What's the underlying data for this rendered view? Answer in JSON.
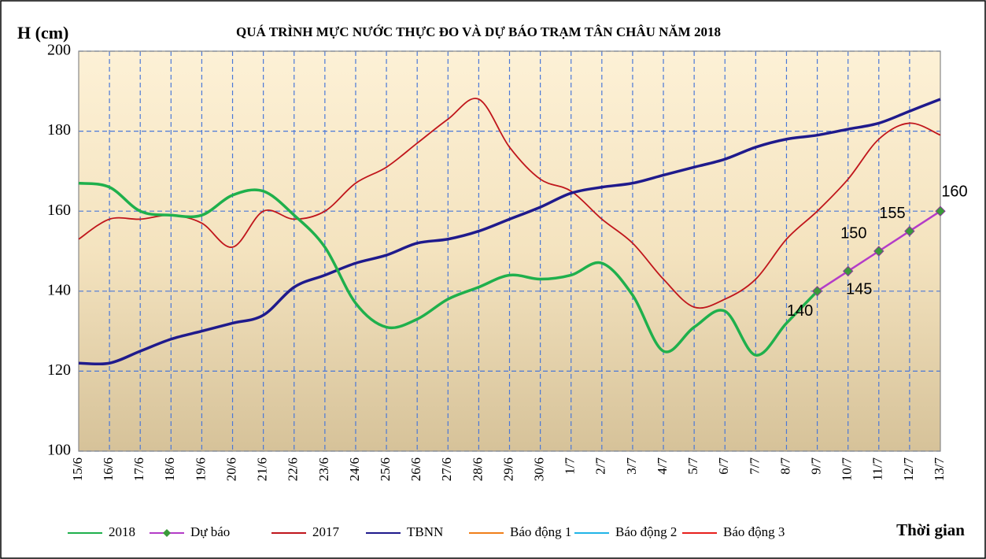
{
  "chart_data": {
    "type": "line",
    "title": "QUÁ TRÌNH MỰC NƯỚC THỰC ĐO VÀ DỰ BÁO TRẠM TÂN CHÂU NĂM 2018",
    "y_label": "H (cm)",
    "x_label": "Thời gian",
    "categories": [
      "15/6",
      "16/6",
      "17/6",
      "18/6",
      "19/6",
      "20/6",
      "21/6",
      "22/6",
      "23/6",
      "24/6",
      "25/6",
      "26/6",
      "27/6",
      "28/6",
      "29/6",
      "30/6",
      "1/7",
      "2/7",
      "3/7",
      "4/7",
      "5/7",
      "6/7",
      "7/7",
      "8/7",
      "9/7",
      "10/7",
      "11/7",
      "12/7",
      "13/7"
    ],
    "ylim": [
      100,
      200
    ],
    "yticks": [
      100,
      120,
      140,
      160,
      180,
      200
    ],
    "grid": true,
    "legend": "bottom",
    "series": [
      {
        "name": "2018",
        "color": "#1fb04c",
        "smooth": true,
        "values": [
          167,
          166,
          160,
          159,
          159,
          164,
          165,
          159,
          151,
          137,
          131,
          133,
          138,
          141,
          144,
          143,
          144,
          147,
          139,
          125,
          131,
          135,
          124,
          132,
          140,
          null,
          null,
          null,
          null
        ]
      },
      {
        "name": "Dự báo",
        "color": "#b43cc8",
        "marker_color": "#3a9a3a",
        "smooth": false,
        "values": [
          null,
          null,
          null,
          null,
          null,
          null,
          null,
          null,
          null,
          null,
          null,
          null,
          null,
          null,
          null,
          null,
          null,
          null,
          null,
          null,
          null,
          null,
          null,
          null,
          140,
          145,
          150,
          155,
          160
        ]
      },
      {
        "name": "2017",
        "color": "#c0161c",
        "smooth": true,
        "values": [
          153,
          158,
          158,
          159,
          157,
          151,
          160,
          158,
          160,
          167,
          171,
          177,
          183,
          188,
          176,
          168,
          165,
          158,
          152,
          143,
          136,
          138,
          143,
          153,
          160,
          168,
          178,
          182,
          179
        ]
      },
      {
        "name": "TBNN",
        "color": "#1f1a8c",
        "smooth": true,
        "values": [
          122,
          122,
          125,
          128,
          130,
          132,
          134,
          141,
          144,
          147,
          149,
          152,
          153,
          155,
          158,
          161,
          164.5,
          166,
          167,
          169,
          171,
          173,
          176,
          178,
          179,
          180.5,
          182,
          185,
          188
        ]
      },
      {
        "name": "Báo động 1",
        "color": "#f07f1a",
        "smooth": true,
        "values": [
          null,
          null,
          null,
          null,
          null,
          null,
          null,
          null,
          null,
          null,
          null,
          null,
          null,
          null,
          null,
          null,
          null,
          null,
          null,
          null,
          null,
          null,
          null,
          null,
          null,
          null,
          null,
          null,
          null
        ]
      },
      {
        "name": "Báo động 2",
        "color": "#21b5e8",
        "smooth": true,
        "values": [
          null,
          null,
          null,
          null,
          null,
          null,
          null,
          null,
          null,
          null,
          null,
          null,
          null,
          null,
          null,
          null,
          null,
          null,
          null,
          null,
          null,
          null,
          null,
          null,
          null,
          null,
          null,
          null,
          null
        ]
      },
      {
        "name": "Báo động 3",
        "color": "#e8201c",
        "smooth": true,
        "values": [
          null,
          null,
          null,
          null,
          null,
          null,
          null,
          null,
          null,
          null,
          null,
          null,
          null,
          null,
          null,
          null,
          null,
          null,
          null,
          null,
          null,
          null,
          null,
          null,
          null,
          null,
          null,
          null,
          null
        ]
      }
    ]
  }
}
